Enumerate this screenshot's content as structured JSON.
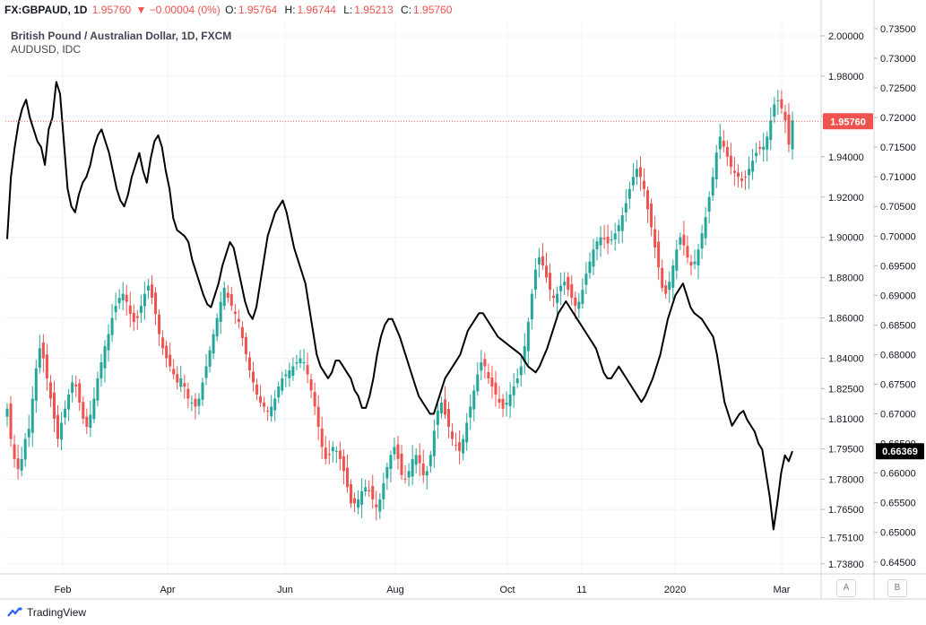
{
  "header": {
    "symbol": "FX:GBPAUD, 1D",
    "last": "1.95760",
    "change": "▼ −0.00004 (0%)",
    "o_label": "O:",
    "o_value": "1.95764",
    "h_label": "H:",
    "h_value": "1.96744",
    "l_label": "L:",
    "l_value": "1.95213",
    "c_label": "C:",
    "c_value": "1.95760"
  },
  "legend": {
    "main": "British Pound / Australian Dollar, 1D, FXCM",
    "overlay": "AUDUSD, IDC"
  },
  "footer": {
    "brand": "TradingView",
    "btn_a": "A",
    "btn_b": "B"
  },
  "colors": {
    "up": "#26a69a",
    "down": "#ef5350",
    "overlay": "#000000",
    "grid": "#f0f3fa"
  },
  "chart_data": {
    "type": "candlestick_with_line_overlay",
    "x_tick_labels": [
      "Feb",
      "Apr",
      "Jun",
      "Aug",
      "Oct",
      "11",
      "2020",
      "Mar"
    ],
    "right_axis_gbpaud": {
      "ticks": [
        2.0,
        1.98,
        1.96,
        1.94,
        1.92,
        1.9,
        1.88,
        1.86,
        1.84,
        1.825,
        1.81,
        1.795,
        1.78,
        1.765,
        1.751,
        1.738
      ],
      "current": "1.95760",
      "range": [
        1.733,
        2.008
      ]
    },
    "right_axis_audusd": {
      "ticks": [
        0.735,
        0.73,
        0.725,
        0.72,
        0.715,
        0.71,
        0.705,
        0.7,
        0.695,
        0.69,
        0.685,
        0.68,
        0.675,
        0.67,
        0.665,
        0.66,
        0.655,
        0.65,
        0.645
      ],
      "current": "0.66369",
      "range": [
        0.643,
        0.7365
      ]
    },
    "gbpaud_close": [
      1.815,
      1.8,
      1.79,
      1.785,
      1.79,
      1.8,
      1.805,
      1.82,
      1.835,
      1.845,
      1.84,
      1.83,
      1.82,
      1.81,
      1.8,
      1.808,
      1.815,
      1.822,
      1.828,
      1.826,
      1.818,
      1.81,
      1.806,
      1.812,
      1.82,
      1.83,
      1.838,
      1.846,
      1.852,
      1.86,
      1.866,
      1.87,
      1.872,
      1.868,
      1.862,
      1.858,
      1.86,
      1.866,
      1.872,
      1.876,
      1.87,
      1.862,
      1.852,
      1.845,
      1.84,
      1.836,
      1.832,
      1.828,
      1.83,
      1.826,
      1.82,
      1.818,
      1.816,
      1.82,
      1.828,
      1.836,
      1.844,
      1.852,
      1.86,
      1.868,
      1.875,
      1.87,
      1.866,
      1.862,
      1.858,
      1.85,
      1.842,
      1.834,
      1.828,
      1.822,
      1.818,
      1.816,
      1.814,
      1.816,
      1.82,
      1.826,
      1.83,
      1.832,
      1.834,
      1.836,
      1.838,
      1.84,
      1.838,
      1.832,
      1.824,
      1.816,
      1.806,
      1.796,
      1.79,
      1.792,
      1.796,
      1.794,
      1.79,
      1.784,
      1.776,
      1.768,
      1.768,
      1.77,
      1.774,
      1.776,
      1.774,
      1.77,
      1.766,
      1.77,
      1.778,
      1.786,
      1.792,
      1.796,
      1.79,
      1.782,
      1.78,
      1.784,
      1.79,
      1.792,
      1.788,
      1.782,
      1.784,
      1.792,
      1.804,
      1.814,
      1.818,
      1.812,
      1.806,
      1.8,
      1.797,
      1.794,
      1.8,
      1.808,
      1.816,
      1.824,
      1.832,
      1.838,
      1.836,
      1.83,
      1.826,
      1.822,
      1.818,
      1.815,
      1.818,
      1.822,
      1.826,
      1.83,
      1.836,
      1.846,
      1.858,
      1.872,
      1.884,
      1.89,
      1.886,
      1.88,
      1.874,
      1.87,
      1.872,
      1.876,
      1.878,
      1.874,
      1.87,
      1.866,
      1.868,
      1.874,
      1.882,
      1.888,
      1.894,
      1.898,
      1.9,
      1.899,
      1.897,
      1.899,
      1.902,
      1.906,
      1.911,
      1.917,
      1.924,
      1.93,
      1.934,
      1.93,
      1.924,
      1.914,
      1.905,
      1.895,
      1.885,
      1.875,
      1.872,
      1.878,
      1.886,
      1.894,
      1.9,
      1.896,
      1.89,
      1.886,
      1.888,
      1.894,
      1.902,
      1.91,
      1.92,
      1.93,
      1.942,
      1.95,
      1.945,
      1.94,
      1.935,
      1.932,
      1.93,
      1.928,
      1.93,
      1.934,
      1.938,
      1.942,
      1.944,
      1.945,
      1.95,
      1.958,
      1.966,
      1.968,
      1.964,
      1.958,
      1.946,
      1.958
    ],
    "audusd_close": [
      0.6995,
      0.71,
      0.715,
      0.719,
      0.7215,
      0.723,
      0.72,
      0.718,
      0.716,
      0.715,
      0.712,
      0.718,
      0.72,
      0.726,
      0.724,
      0.716,
      0.708,
      0.705,
      0.704,
      0.707,
      0.709,
      0.71,
      0.712,
      0.715,
      0.717,
      0.718,
      0.716,
      0.714,
      0.711,
      0.708,
      0.706,
      0.705,
      0.707,
      0.71,
      0.712,
      0.714,
      0.711,
      0.709,
      0.713,
      0.716,
      0.717,
      0.715,
      0.711,
      0.708,
      0.703,
      0.701,
      0.7005,
      0.7,
      0.699,
      0.696,
      0.694,
      0.692,
      0.69,
      0.6885,
      0.688,
      0.69,
      0.692,
      0.695,
      0.697,
      0.699,
      0.698,
      0.695,
      0.692,
      0.689,
      0.687,
      0.686,
      0.688,
      0.692,
      0.696,
      0.7,
      0.702,
      0.704,
      0.705,
      0.706,
      0.704,
      0.701,
      0.698,
      0.696,
      0.694,
      0.692,
      0.688,
      0.684,
      0.68,
      0.678,
      0.677,
      0.676,
      0.677,
      0.679,
      0.679,
      0.678,
      0.677,
      0.676,
      0.674,
      0.673,
      0.671,
      0.671,
      0.673,
      0.676,
      0.68,
      0.683,
      0.685,
      0.686,
      0.686,
      0.6845,
      0.683,
      0.681,
      0.679,
      0.677,
      0.675,
      0.673,
      0.672,
      0.671,
      0.67,
      0.67,
      0.672,
      0.674,
      0.676,
      0.677,
      0.678,
      0.679,
      0.68,
      0.682,
      0.684,
      0.685,
      0.686,
      0.687,
      0.687,
      0.686,
      0.685,
      0.684,
      0.683,
      0.6825,
      0.682,
      0.6815,
      0.681,
      0.6805,
      0.68,
      0.679,
      0.678,
      0.6775,
      0.677,
      0.678,
      0.6795,
      0.681,
      0.683,
      0.685,
      0.687,
      0.688,
      0.689,
      0.688,
      0.687,
      0.686,
      0.685,
      0.684,
      0.683,
      0.682,
      0.681,
      0.679,
      0.677,
      0.676,
      0.676,
      0.677,
      0.678,
      0.677,
      0.676,
      0.675,
      0.674,
      0.673,
      0.672,
      0.673,
      0.6745,
      0.676,
      0.678,
      0.68,
      0.683,
      0.686,
      0.688,
      0.69,
      0.691,
      0.692,
      0.69,
      0.688,
      0.687,
      0.6865,
      0.686,
      0.685,
      0.684,
      0.683,
      0.68,
      0.676,
      0.672,
      0.67,
      0.668,
      0.669,
      0.67,
      0.6705,
      0.669,
      0.668,
      0.667,
      0.665,
      0.664,
      0.66,
      0.656,
      0.6505,
      0.655,
      0.66,
      0.663,
      0.662,
      0.6637
    ]
  }
}
